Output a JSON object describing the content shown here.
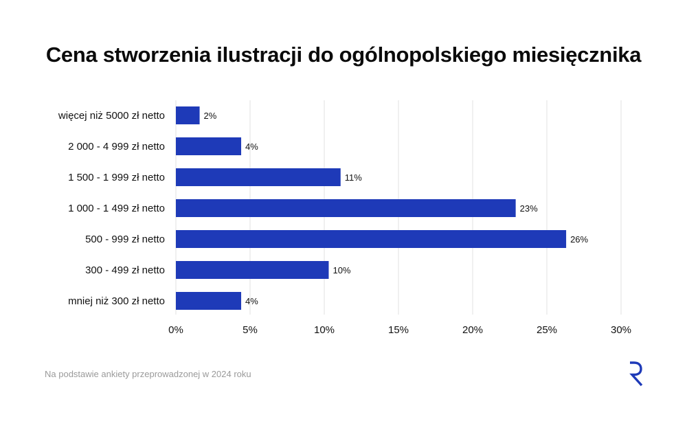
{
  "chart_data": {
    "type": "bar",
    "orientation": "horizontal",
    "title": "Cena stworzenia ilustracji do ogólnopolskiego miesięcznika",
    "categories": [
      "więcej niż 5000 zł netto",
      "2 000 - 4 999 zł netto",
      "1 500 - 1 999 zł netto",
      "1 000 - 1 499 zł netto",
      "500 - 999 zł netto",
      "300 - 499 zł netto",
      "mniej niż 300 zł netto"
    ],
    "values": [
      1.6,
      4.4,
      11.1,
      22.9,
      26.3,
      10.3,
      4.4
    ],
    "data_labels": [
      "2%",
      "4%",
      "11%",
      "23%",
      "26%",
      "10%",
      "4%"
    ],
    "x_ticks": [
      0,
      5,
      10,
      15,
      20,
      25,
      30
    ],
    "x_tick_labels": [
      "0%",
      "5%",
      "10%",
      "15%",
      "20%",
      "25%",
      "30%"
    ],
    "xlim": [
      0,
      30
    ],
    "xlabel": "",
    "ylabel": "",
    "grid": "vertical",
    "legend": "none",
    "bar_color": "#1e3ab8",
    "grid_color": "#e2e2e2"
  },
  "footer": {
    "source_note": "Na podstawie ankiety przeprowadzonej w 2024 roku"
  },
  "brand": {
    "logo_icon": "r-logo-icon",
    "logo_color": "#1e3ab8"
  }
}
